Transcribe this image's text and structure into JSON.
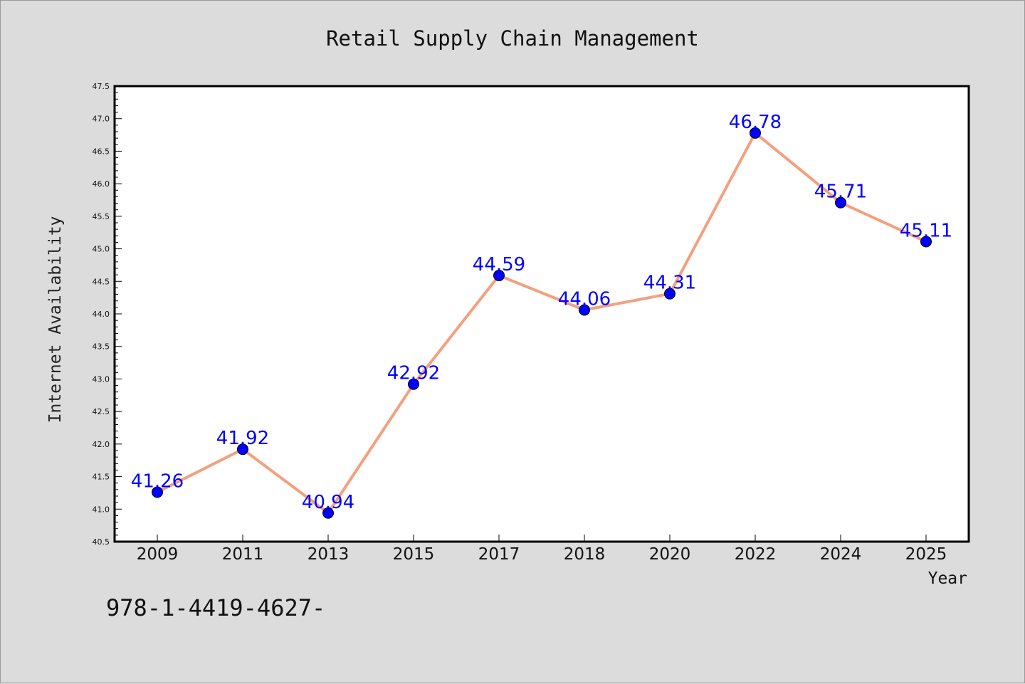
{
  "chart_data": {
    "type": "line",
    "title": "Retail Supply Chain Management",
    "xlabel": "Year",
    "ylabel": "Internet Availability",
    "categories": [
      "2009",
      "2011",
      "2013",
      "2015",
      "2017",
      "2018",
      "2020",
      "2022",
      "2024",
      "2025"
    ],
    "values": [
      41.26,
      41.92,
      40.94,
      42.92,
      44.59,
      44.06,
      44.31,
      46.78,
      45.71,
      45.11
    ],
    "data_labels": [
      "41.26",
      "41.92",
      "40.94",
      "42.92",
      "44.59",
      "44.06",
      "44.31",
      "46.78",
      "45.71",
      "45.11"
    ],
    "ylim": [
      40.5,
      47.5
    ],
    "yticks": [
      "40.5",
      "41.0",
      "41.5",
      "42.0",
      "42.5",
      "43.0",
      "43.5",
      "44.0",
      "44.5",
      "45.0",
      "45.5",
      "46.0",
      "46.5",
      "47.0",
      "47.5"
    ],
    "grid": false,
    "line_color": "#f4a07e",
    "marker_color": "#0000ff",
    "label_color": "#0000ff",
    "background_color": "#dcdcdc",
    "plot_background": "#ffffff"
  },
  "footer_text": "978-1-4419-4627-"
}
